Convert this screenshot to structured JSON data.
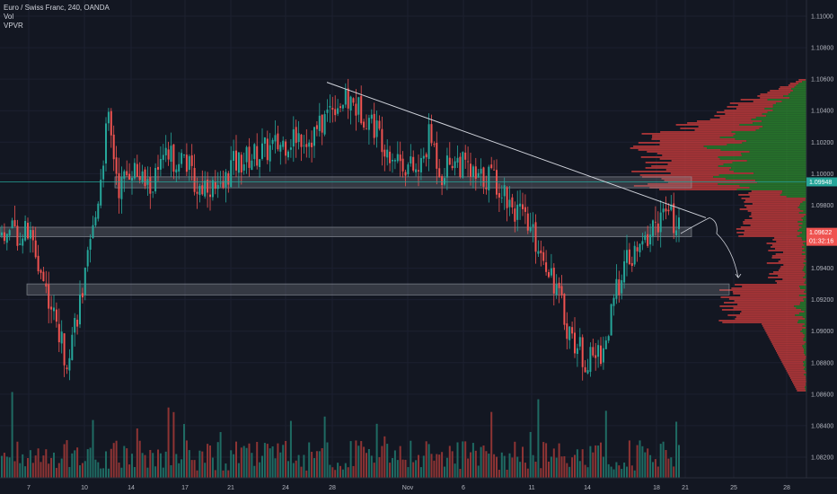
{
  "legend": {
    "symbol": "Euro / Swiss Franc, 240, OANDA",
    "vol": "Vol",
    "vpvr": "VPVR"
  },
  "colors": {
    "background": "#131722",
    "up": "#26a69a",
    "down": "#ef5350",
    "vol_up": "#1f6b63",
    "vol_down": "#8e3434",
    "vpvr_up": "#2e8b2e",
    "vpvr_down": "#d03d3d",
    "trendline": "#d1d4dc",
    "zone": "#8f9299",
    "h_line": "#26a69a",
    "price_tag": "#ef5350",
    "ref_tag": "#26a69a"
  },
  "tags": {
    "ref_price": "1.09948",
    "last_price": "1.09622",
    "countdown": "01:32:16"
  },
  "chart_data": {
    "type": "candlestick",
    "title": "Euro / Swiss Franc, 240, OANDA",
    "ylim": [
      1.081,
      1.111
    ],
    "y_ticks": [
      "1.11000",
      "1.10800",
      "1.10600",
      "1.10400",
      "1.10200",
      "1.10000",
      "1.09800",
      "1.09600",
      "1.09400",
      "1.09200",
      "1.09000",
      "1.08800",
      "1.08600",
      "1.08400",
      "1.08200"
    ],
    "x_ticks": [
      "7",
      "10",
      "14",
      "17",
      "21",
      "24",
      "28",
      "Nov",
      "6",
      "11",
      "14",
      "18",
      "21",
      "25",
      "28"
    ],
    "price_path": [
      [
        "7",
        1.0962
      ],
      [
        "8",
        1.0925
      ],
      [
        "9",
        1.0882
      ],
      [
        "10",
        1.093
      ],
      [
        "11",
        1.0975
      ],
      [
        "12",
        1.1035
      ],
      [
        "13",
        1.099
      ],
      [
        "14",
        1.1005
      ],
      [
        "15",
        1.099
      ],
      [
        "16",
        1.101
      ],
      [
        "17",
        1.101
      ],
      [
        "18",
        1.099
      ],
      [
        "19",
        1.0995
      ],
      [
        "20",
        1.0985
      ],
      [
        "21",
        1.1005
      ],
      [
        "22",
        1.101
      ],
      [
        "23",
        1.1015
      ],
      [
        "24",
        1.102
      ],
      [
        "25",
        1.1025
      ],
      [
        "26",
        1.1022
      ],
      [
        "27",
        1.103
      ],
      [
        "28",
        1.1045
      ],
      [
        "29",
        1.1045
      ],
      [
        "30",
        1.1035
      ],
      [
        "31",
        1.1015
      ],
      [
        "Nov",
        1.1005
      ],
      [
        "2",
        1.1
      ],
      [
        "3",
        1.1025
      ],
      [
        "4",
        1.1
      ],
      [
        "5",
        1.101
      ],
      [
        "6",
        1.1005
      ],
      [
        "7",
        1.0995
      ],
      [
        "8",
        1.1
      ],
      [
        "9",
        1.0988
      ],
      [
        "10",
        1.0975
      ],
      [
        "11",
        1.0962
      ],
      [
        "12",
        1.094
      ],
      [
        "13",
        1.09
      ],
      [
        "14",
        1.088
      ],
      [
        "15",
        1.089
      ],
      [
        "16",
        1.094
      ],
      [
        "17",
        1.095
      ],
      [
        "18",
        1.097
      ],
      [
        "19",
        1.0975
      ],
      [
        "20",
        1.0962
      ]
    ],
    "trendline": [
      [
        "28",
        1.1058
      ],
      [
        "21",
        1.0972
      ]
    ],
    "zones": [
      {
        "low": 1.0991,
        "high": 1.0998
      },
      {
        "low": 1.096,
        "high": 1.0966
      },
      {
        "low": 1.0923,
        "high": 1.093
      }
    ],
    "ref_price": 1.09948,
    "last_price": 1.09622
  }
}
